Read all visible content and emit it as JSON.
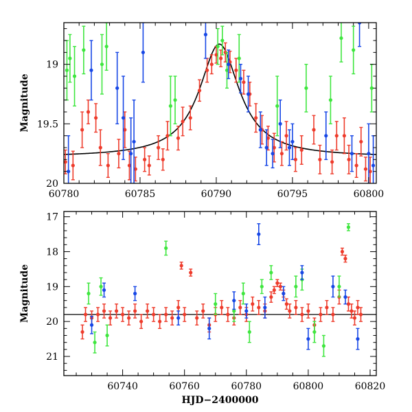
{
  "colors": {
    "red": "#ee3b2b",
    "green": "#3ee63e",
    "blue": "#1747e6",
    "model": "#000000"
  },
  "chart_data": [
    {
      "type": "scatter",
      "title": "",
      "xlabel": "",
      "ylabel": "Magnitude",
      "xlim": [
        60780,
        60800.5
      ],
      "ylim": [
        20.0,
        18.65
      ],
      "y_inverted": true,
      "xticks": [
        60780,
        60785,
        60790,
        60795,
        60800
      ],
      "xtick_labels": [
        "60780",
        "60785",
        "60790",
        "60795",
        "60800"
      ],
      "yticks": [
        19.0,
        19.5,
        20.0
      ],
      "ytick_labels": [
        "19",
        "19.5",
        "20"
      ],
      "grid": false,
      "legend": "none",
      "model_curve": {
        "type": "lorentzian-peak",
        "baseline": 19.78,
        "peak_mag": 18.83,
        "t0": 60790.2,
        "width": 1.6
      },
      "series": [
        {
          "color_key": "red",
          "points": [
            [
              60780.1,
              19.82,
              0.1
            ],
            [
              60780.6,
              19.85,
              0.12
            ],
            [
              60781.2,
              19.55,
              0.15
            ],
            [
              60781.6,
              19.4,
              0.1
            ],
            [
              60782.1,
              19.45,
              0.12
            ],
            [
              60782.4,
              19.7,
              0.15
            ],
            [
              60782.9,
              19.85,
              0.1
            ],
            [
              60783.6,
              19.75,
              0.12
            ],
            [
              60784.0,
              19.55,
              0.15
            ],
            [
              60784.3,
              19.85,
              0.12
            ],
            [
              60784.7,
              19.88,
              0.1
            ],
            [
              60785.3,
              19.8,
              0.1
            ],
            [
              60785.6,
              19.85,
              0.08
            ],
            [
              60786.2,
              19.7,
              0.1
            ],
            [
              60786.5,
              19.8,
              0.09
            ],
            [
              60786.8,
              19.6,
              0.12
            ],
            [
              60787.5,
              19.62,
              0.1
            ],
            [
              60787.8,
              19.48,
              0.12
            ],
            [
              60788.3,
              19.45,
              0.1
            ],
            [
              60788.9,
              19.22,
              0.09
            ],
            [
              60789.4,
              19.05,
              0.1
            ],
            [
              60789.7,
              19.0,
              0.08
            ],
            [
              60790.0,
              18.92,
              0.07
            ],
            [
              60790.3,
              18.95,
              0.07
            ],
            [
              60790.6,
              18.9,
              0.08
            ],
            [
              60790.9,
              18.98,
              0.09
            ],
            [
              60791.3,
              19.05,
              0.1
            ],
            [
              60791.8,
              19.15,
              0.1
            ],
            [
              60792.2,
              19.25,
              0.1
            ],
            [
              60792.6,
              19.45,
              0.12
            ],
            [
              60793.0,
              19.55,
              0.12
            ],
            [
              60793.4,
              19.62,
              0.1
            ],
            [
              60793.8,
              19.7,
              0.12
            ],
            [
              60794.3,
              19.75,
              0.1
            ],
            [
              60794.6,
              19.6,
              0.12
            ],
            [
              60795.2,
              19.8,
              0.1
            ],
            [
              60795.6,
              19.72,
              0.12
            ],
            [
              60796.4,
              19.55,
              0.12
            ],
            [
              60796.8,
              19.8,
              0.12
            ],
            [
              60797.6,
              19.82,
              0.1
            ],
            [
              60797.9,
              19.6,
              0.12
            ],
            [
              60798.4,
              19.6,
              0.15
            ],
            [
              60798.7,
              19.8,
              0.12
            ],
            [
              60799.2,
              19.85,
              0.1
            ],
            [
              60799.5,
              19.65,
              0.12
            ],
            [
              60799.8,
              19.88,
              0.1
            ],
            [
              60800.1,
              19.9,
              0.12
            ]
          ]
        },
        {
          "color_key": "green",
          "points": [
            [
              60780.2,
              19.05,
              0.25
            ],
            [
              60780.4,
              18.95,
              0.2
            ],
            [
              60780.7,
              19.1,
              0.25
            ],
            [
              60781.3,
              18.88,
              0.2
            ],
            [
              60782.5,
              19.0,
              0.25
            ],
            [
              60782.8,
              18.85,
              0.2
            ],
            [
              60787.0,
              19.35,
              0.25
            ],
            [
              60787.3,
              19.3,
              0.2
            ],
            [
              60790.1,
              18.85,
              0.15
            ],
            [
              60790.4,
              18.8,
              0.12
            ],
            [
              60790.7,
              19.05,
              0.15
            ],
            [
              60791.5,
              18.95,
              0.2
            ],
            [
              60794.0,
              19.35,
              0.25
            ],
            [
              60795.9,
              19.2,
              0.2
            ],
            [
              60797.5,
              19.3,
              0.2
            ],
            [
              60798.2,
              18.78,
              0.2
            ],
            [
              60799.0,
              18.88,
              0.2
            ],
            [
              60800.2,
              19.2,
              0.2
            ]
          ]
        },
        {
          "color_key": "blue",
          "points": [
            [
              60780.3,
              19.9,
              0.3
            ],
            [
              60781.8,
              19.05,
              0.25
            ],
            [
              60783.5,
              19.2,
              0.3
            ],
            [
              60783.9,
              19.45,
              0.35
            ],
            [
              60784.4,
              19.75,
              0.3
            ],
            [
              60784.6,
              19.65,
              0.35
            ],
            [
              60785.2,
              18.9,
              0.25
            ],
            [
              60789.3,
              18.75,
              0.2
            ],
            [
              60790.8,
              19.0,
              0.12
            ],
            [
              60791.6,
              19.12,
              0.12
            ],
            [
              60792.1,
              19.25,
              0.15
            ],
            [
              60792.9,
              19.55,
              0.15
            ],
            [
              60793.3,
              19.7,
              0.15
            ],
            [
              60793.7,
              19.75,
              0.12
            ],
            [
              60794.2,
              19.5,
              0.2
            ],
            [
              60794.8,
              19.7,
              0.15
            ],
            [
              60795.0,
              19.65,
              0.15
            ],
            [
              60797.2,
              19.6,
              0.2
            ],
            [
              60798.9,
              19.75,
              0.15
            ],
            [
              60799.4,
              18.65,
              0.2
            ],
            [
              60800.0,
              19.75,
              0.25
            ],
            [
              60800.3,
              19.85,
              0.25
            ]
          ]
        }
      ]
    },
    {
      "type": "scatter",
      "title": "",
      "xlabel": "HJD−2400000",
      "ylabel": "Magnitude",
      "xlim": [
        60721,
        60822
      ],
      "ylim": [
        21.55,
        16.85
      ],
      "y_inverted": true,
      "xticks": [
        60740,
        60760,
        60780,
        60800,
        60820
      ],
      "xtick_labels": [
        "60740",
        "60760",
        "60780",
        "60800",
        "60820"
      ],
      "yticks": [
        17,
        18,
        19,
        20,
        21
      ],
      "ytick_labels": [
        "17",
        "18",
        "19",
        "20",
        "21"
      ],
      "grid": false,
      "legend": "none",
      "reference_line": 19.8,
      "series": [
        {
          "color_key": "red",
          "points": [
            [
              60727,
              20.3,
              0.2
            ],
            [
              60728,
              19.8,
              0.2
            ],
            [
              60730,
              19.9,
              0.2
            ],
            [
              60732,
              19.8,
              0.2
            ],
            [
              60734,
              19.7,
              0.2
            ],
            [
              60736,
              19.9,
              0.2
            ],
            [
              60738,
              19.7,
              0.2
            ],
            [
              60740,
              19.8,
              0.2
            ],
            [
              60742,
              19.9,
              0.2
            ],
            [
              60744,
              19.7,
              0.2
            ],
            [
              60746,
              20.0,
              0.2
            ],
            [
              60748,
              19.7,
              0.2
            ],
            [
              60750,
              19.8,
              0.2
            ],
            [
              60752,
              20.0,
              0.2
            ],
            [
              60754,
              19.8,
              0.2
            ],
            [
              60756,
              19.9,
              0.2
            ],
            [
              60758,
              19.6,
              0.2
            ],
            [
              60759,
              18.4,
              0.1
            ],
            [
              60760,
              19.8,
              0.2
            ],
            [
              60762,
              18.6,
              0.1
            ],
            [
              60764,
              19.9,
              0.2
            ],
            [
              60766,
              19.7,
              0.2
            ],
            [
              60768,
              20.1,
              0.2
            ],
            [
              60770,
              19.8,
              0.2
            ],
            [
              60772,
              19.6,
              0.2
            ],
            [
              60774,
              19.8,
              0.2
            ],
            [
              60776,
              19.9,
              0.2
            ],
            [
              60778,
              19.6,
              0.2
            ],
            [
              60780,
              19.8,
              0.2
            ],
            [
              60782,
              19.5,
              0.2
            ],
            [
              60784,
              19.6,
              0.2
            ],
            [
              60786,
              19.7,
              0.2
            ],
            [
              60788,
              19.3,
              0.15
            ],
            [
              60789,
              19.1,
              0.1
            ],
            [
              60790,
              18.9,
              0.1
            ],
            [
              60791,
              19.0,
              0.1
            ],
            [
              60792,
              19.2,
              0.1
            ],
            [
              60793,
              19.5,
              0.15
            ],
            [
              60794,
              19.7,
              0.2
            ],
            [
              60796,
              19.6,
              0.2
            ],
            [
              60798,
              19.8,
              0.2
            ],
            [
              60800,
              19.7,
              0.2
            ],
            [
              60802,
              20.1,
              0.2
            ],
            [
              60804,
              19.8,
              0.2
            ],
            [
              60806,
              19.6,
              0.2
            ],
            [
              60808,
              19.8,
              0.2
            ],
            [
              60810,
              19.3,
              0.2
            ],
            [
              60811,
              18.0,
              0.1
            ],
            [
              60812,
              18.2,
              0.1
            ],
            [
              60813,
              19.5,
              0.2
            ],
            [
              60814,
              19.7,
              0.2
            ],
            [
              60815,
              19.9,
              0.2
            ],
            [
              60816,
              19.6,
              0.2
            ],
            [
              60817,
              19.8,
              0.2
            ]
          ]
        },
        {
          "color_key": "green",
          "points": [
            [
              60729,
              19.2,
              0.3
            ],
            [
              60731,
              20.6,
              0.3
            ],
            [
              60733,
              19.0,
              0.25
            ],
            [
              60735,
              20.4,
              0.3
            ],
            [
              60754,
              17.9,
              0.2
            ],
            [
              60770,
              19.5,
              0.3
            ],
            [
              60776,
              19.7,
              0.3
            ],
            [
              60779,
              19.2,
              0.3
            ],
            [
              60781,
              20.3,
              0.3
            ],
            [
              60785,
              19.0,
              0.2
            ],
            [
              60788,
              18.6,
              0.2
            ],
            [
              60796,
              19.0,
              0.3
            ],
            [
              60798,
              18.8,
              0.3
            ],
            [
              60802,
              20.3,
              0.3
            ],
            [
              60805,
              20.7,
              0.3
            ],
            [
              60810,
              19.0,
              0.3
            ],
            [
              60813,
              17.3,
              0.1
            ]
          ]
        },
        {
          "color_key": "blue",
          "points": [
            [
              60730,
              20.1,
              0.25
            ],
            [
              60734,
              19.1,
              0.2
            ],
            [
              60744,
              19.2,
              0.2
            ],
            [
              60758,
              19.9,
              0.2
            ],
            [
              60768,
              20.2,
              0.3
            ],
            [
              60776,
              19.4,
              0.25
            ],
            [
              60780,
              19.7,
              0.2
            ],
            [
              60784,
              17.5,
              0.3
            ],
            [
              60786,
              19.6,
              0.3
            ],
            [
              60792,
              19.2,
              0.2
            ],
            [
              60798,
              18.6,
              0.2
            ],
            [
              60800,
              20.5,
              0.3
            ],
            [
              60808,
              19.0,
              0.3
            ],
            [
              60812,
              19.3,
              0.2
            ],
            [
              60816,
              20.5,
              0.3
            ]
          ]
        }
      ]
    }
  ]
}
